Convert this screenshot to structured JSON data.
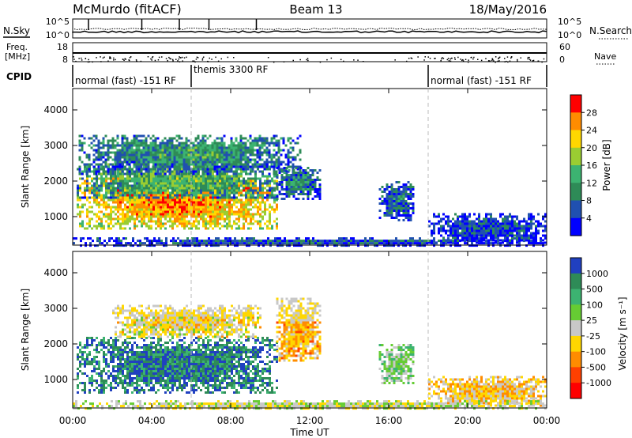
{
  "header": {
    "title": "McMurdo (fitACF)",
    "beam": "Beam 13",
    "date": "18/May/2016"
  },
  "strip": {
    "nsky_label": "N.Sky",
    "nsky_ticks": [
      "10^5",
      "10^0"
    ],
    "nsearch_label": "N.Search",
    "nsearch_ticks": [
      "10^5",
      "10^0"
    ],
    "freq_label_1": "Freq.",
    "freq_label_2": "[MHz]",
    "freq_ticks": [
      "18",
      "8"
    ],
    "nave_label": "Nave",
    "nave_ticks": [
      "60",
      "0"
    ],
    "cpid_label": "CPID",
    "cpid_segments": [
      {
        "label": "normal (fast) -151 RF",
        "start_h": 0,
        "end_h": 6
      },
      {
        "label": "themis 3300 RF",
        "start_h": 6,
        "end_h": 18
      },
      {
        "label": "normal (fast) -151 RF",
        "start_h": 18,
        "end_h": 24
      }
    ]
  },
  "chart_data": [
    {
      "type": "heatmap",
      "name": "power",
      "ylabel": "Slant Range [km]",
      "y_ticks": [
        "1000",
        "2000",
        "3000",
        "4000"
      ],
      "ylim": [
        200,
        4600
      ],
      "xlim": [
        0,
        24
      ],
      "colorbar": {
        "label": "Power [dB]",
        "ticks": [
          "4",
          "8",
          "12",
          "16",
          "20",
          "24",
          "28"
        ],
        "range": [
          0,
          32
        ],
        "colors": [
          "#0000ff",
          "#2050b0",
          "#2e8b57",
          "#3cb371",
          "#9acd32",
          "#ffd700",
          "#ff8c00",
          "#ff0000"
        ]
      },
      "regions": [
        {
          "x": [
            0.2,
            10.3
          ],
          "y": [
            650,
            2100
          ],
          "level": 0.88
        },
        {
          "x": [
            0.2,
            10.3
          ],
          "y": [
            1500,
            2500
          ],
          "level": 0.55
        },
        {
          "x": [
            0.3,
            11.5
          ],
          "y": [
            2200,
            3300
          ],
          "level": 0.45
        },
        {
          "x": [
            10.3,
            12.5
          ],
          "y": [
            1500,
            2400
          ],
          "level": 0.4
        },
        {
          "x": [
            15.5,
            17.3
          ],
          "y": [
            900,
            2000
          ],
          "level": 0.35
        },
        {
          "x": [
            18.0,
            24.0
          ],
          "y": [
            250,
            1100
          ],
          "level": 0.3
        },
        {
          "x": [
            0.0,
            24.0
          ],
          "y": [
            200,
            420
          ],
          "level": 0.32
        }
      ]
    },
    {
      "type": "heatmap",
      "name": "velocity",
      "xlabel": "Time UT",
      "ylabel": "Slant Range [km]",
      "y_ticks": [
        "1000",
        "2000",
        "3000",
        "4000"
      ],
      "ylim": [
        200,
        4600
      ],
      "x_ticks": [
        "00:00",
        "04:00",
        "08:00",
        "12:00",
        "16:00",
        "20:00",
        "00:00"
      ],
      "xlim": [
        0,
        24
      ],
      "colorbar": {
        "label": "Velocity [m s⁻¹]",
        "ticks": [
          "1000",
          "500",
          "100",
          "25",
          "-25",
          "-100",
          "-500",
          "-1000"
        ],
        "colors": [
          "#2040c0",
          "#2e8b57",
          "#3cb371",
          "#66cc33",
          "#c8c8c8",
          "#ffd700",
          "#ff8c00",
          "#ff4000",
          "#ff0000"
        ]
      },
      "regions": [
        {
          "x": [
            0.2,
            10.3
          ],
          "y": [
            650,
            2200
          ],
          "level": 0.85
        },
        {
          "x": [
            2.0,
            9.5
          ],
          "y": [
            2200,
            3100
          ],
          "level": 0.45
        },
        {
          "x": [
            10.3,
            12.5
          ],
          "y": [
            1500,
            3300
          ],
          "level": 0.35
        },
        {
          "x": [
            15.5,
            17.3
          ],
          "y": [
            900,
            2000
          ],
          "level": 0.6
        },
        {
          "x": [
            18.0,
            24.0
          ],
          "y": [
            250,
            1100
          ],
          "level": 0.4
        },
        {
          "x": [
            0.0,
            24.0
          ],
          "y": [
            200,
            420
          ],
          "level": 0.5
        }
      ]
    }
  ]
}
